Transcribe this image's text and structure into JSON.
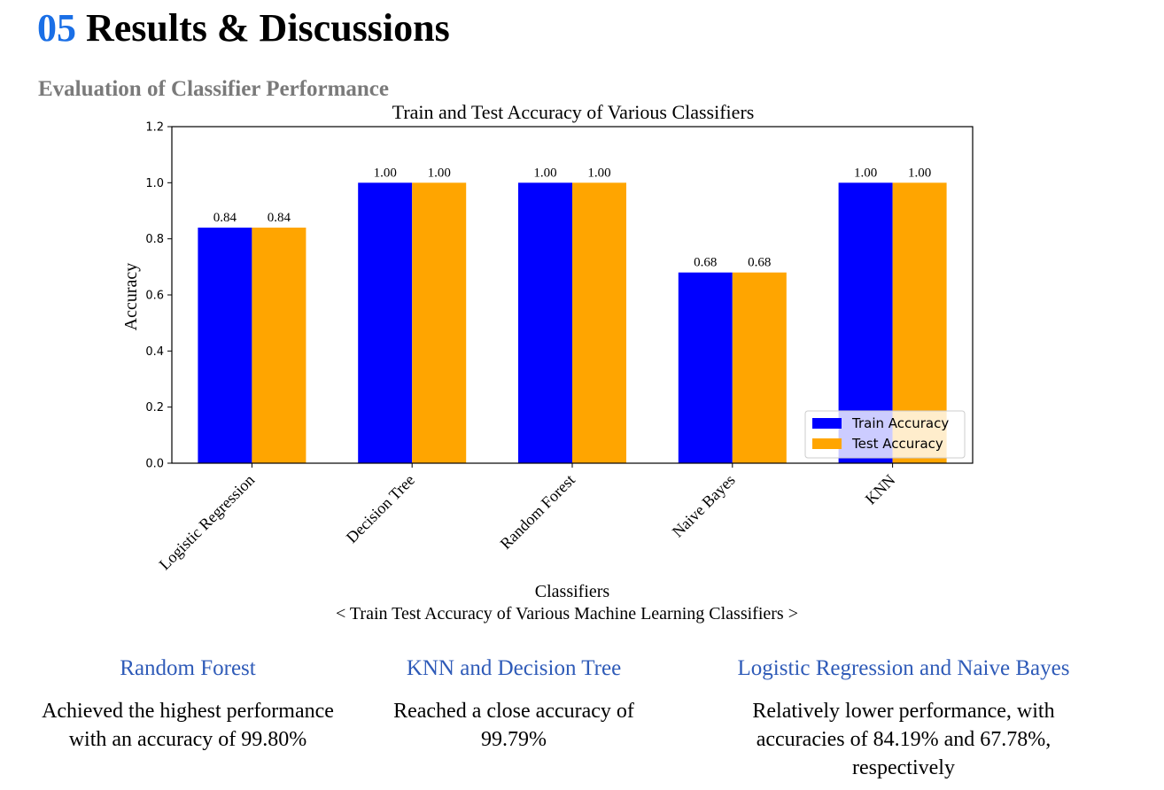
{
  "header": {
    "number": "05",
    "title": "Results & Discussions"
  },
  "section": {
    "subtitle": "Evaluation of Classifier Performance"
  },
  "chart_data": {
    "type": "bar",
    "title": "Train and Test Accuracy of Various Classifiers",
    "xlabel": "Classifiers",
    "ylabel": "Accuracy",
    "categories": [
      "Logistic Regression",
      "Decision Tree",
      "Random Forest",
      "Naive Bayes",
      "KNN"
    ],
    "series": [
      {
        "name": "Train Accuracy",
        "color": "#0000ff",
        "values": [
          0.84,
          1.0,
          1.0,
          0.68,
          1.0
        ],
        "labels": [
          "0.84",
          "1.00",
          "1.00",
          "0.68",
          "1.00"
        ]
      },
      {
        "name": "Test Accuracy",
        "color": "#ffa500",
        "values": [
          0.84,
          1.0,
          1.0,
          0.68,
          1.0
        ],
        "labels": [
          "0.84",
          "1.00",
          "1.00",
          "0.68",
          "1.00"
        ]
      }
    ],
    "ylim": [
      0,
      1.2
    ],
    "yticks": [
      "0.0",
      "0.2",
      "0.4",
      "0.6",
      "0.8",
      "1.0",
      "1.2"
    ],
    "grid": false,
    "legend": "lower-right"
  },
  "caption": "< Train Test Accuracy of Various Machine Learning Classifiers >",
  "findings": [
    {
      "heading": "Random Forest",
      "text": "Achieved the highest performance with an accuracy of 99.80%"
    },
    {
      "heading": "KNN and Decision Tree",
      "text": "Reached a close accuracy of 99.79%"
    },
    {
      "heading": "Logistic Regression and Naive Bayes",
      "text": "Relatively lower performance, with accuracies of 84.19% and 67.78%, respectively"
    }
  ]
}
